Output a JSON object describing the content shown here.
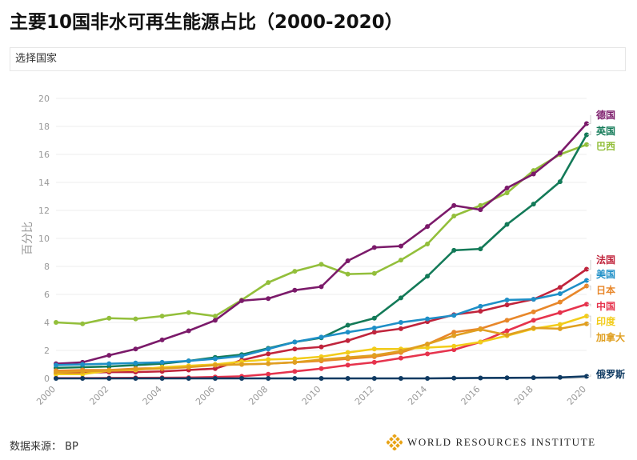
{
  "page": {
    "title": "主要10国非水可再生能源占比（2000-2020）",
    "country_selector": "选择国家",
    "source": "数据来源：  BP",
    "logo_text": "WORLD RESOURCES INSTITUTE"
  },
  "chart_data": {
    "type": "line",
    "title": "主要10国非水可再生能源占比（2000-2020）",
    "xlabel": "",
    "ylabel": "百分比",
    "ylim": [
      0,
      20
    ],
    "yticks": [
      0,
      2,
      4,
      6,
      8,
      10,
      12,
      14,
      16,
      18,
      20
    ],
    "xticks": [
      2000,
      2002,
      2004,
      2006,
      2008,
      2010,
      2012,
      2014,
      2016,
      2018,
      2020
    ],
    "x": [
      2000,
      2001,
      2002,
      2003,
      2004,
      2005,
      2006,
      2007,
      2008,
      2009,
      2010,
      2011,
      2012,
      2013,
      2014,
      2015,
      2016,
      2017,
      2018,
      2019,
      2020
    ],
    "grid": true,
    "legend": "right end labels",
    "series": [
      {
        "name": "巴西",
        "color": "#93bf3b",
        "values": [
          4.0,
          3.9,
          4.3,
          4.25,
          4.45,
          4.7,
          4.45,
          5.6,
          6.85,
          7.65,
          8.15,
          7.45,
          7.5,
          8.45,
          9.6,
          11.6,
          12.35,
          13.25,
          14.85,
          16.0,
          16.7
        ]
      },
      {
        "name": "德国",
        "color": "#7b1a6a",
        "values": [
          1.05,
          1.15,
          1.65,
          2.1,
          2.75,
          3.4,
          4.15,
          5.55,
          5.7,
          6.3,
          6.55,
          8.4,
          9.35,
          9.45,
          10.85,
          12.35,
          12.05,
          13.6,
          14.6,
          16.1,
          18.2
        ]
      },
      {
        "name": "英国",
        "color": "#137a58",
        "values": [
          0.75,
          0.8,
          0.85,
          0.95,
          1.05,
          1.25,
          1.5,
          1.7,
          2.15,
          2.6,
          2.9,
          3.8,
          4.3,
          5.75,
          7.3,
          9.15,
          9.25,
          11.0,
          12.45,
          14.05,
          17.4
        ]
      },
      {
        "name": "法国",
        "color": "#c0243c",
        "values": [
          0.35,
          0.4,
          0.45,
          0.45,
          0.5,
          0.6,
          0.7,
          1.3,
          1.75,
          2.1,
          2.25,
          2.7,
          3.3,
          3.55,
          4.05,
          4.55,
          4.8,
          5.25,
          5.65,
          6.5,
          7.8
        ]
      },
      {
        "name": "美国",
        "color": "#1e8fc7",
        "values": [
          0.95,
          1.0,
          1.05,
          1.1,
          1.15,
          1.25,
          1.4,
          1.6,
          2.1,
          2.6,
          2.95,
          3.3,
          3.6,
          4.0,
          4.25,
          4.5,
          5.15,
          5.6,
          5.65,
          6.05,
          7.0
        ]
      },
      {
        "name": "日本",
        "color": "#e8872a",
        "values": [
          0.55,
          0.6,
          0.6,
          0.7,
          0.75,
          0.85,
          0.95,
          1.0,
          1.05,
          1.15,
          1.25,
          1.4,
          1.55,
          1.85,
          2.45,
          3.3,
          3.55,
          4.15,
          4.75,
          5.45,
          6.6
        ]
      },
      {
        "name": "中国",
        "color": "#e6334d",
        "values": [
          0.02,
          0.02,
          0.03,
          0.04,
          0.05,
          0.06,
          0.1,
          0.15,
          0.3,
          0.5,
          0.7,
          0.95,
          1.15,
          1.45,
          1.75,
          2.05,
          2.6,
          3.4,
          4.15,
          4.7,
          5.3
        ]
      },
      {
        "name": "印度",
        "color": "#f2cc1a",
        "values": [
          0.3,
          0.3,
          0.55,
          0.6,
          0.8,
          0.9,
          1.0,
          1.2,
          1.35,
          1.4,
          1.55,
          1.85,
          2.1,
          2.1,
          2.2,
          2.3,
          2.6,
          3.05,
          3.55,
          3.85,
          4.45
        ]
      },
      {
        "name": "加拿大",
        "color": "#e09f20",
        "values": [
          0.45,
          0.5,
          0.55,
          0.65,
          0.7,
          0.8,
          0.95,
          1.0,
          1.05,
          1.15,
          1.35,
          1.5,
          1.65,
          1.95,
          2.45,
          3.05,
          3.5,
          3.1,
          3.6,
          3.55,
          3.9
        ]
      },
      {
        "name": "俄罗斯",
        "color": "#0f3a62",
        "values": [
          0.0,
          0.0,
          0.0,
          0.0,
          0.0,
          0.0,
          0.0,
          0.0,
          0.0,
          0.0,
          0.0,
          0.0,
          0.0,
          0.0,
          0.0,
          0.02,
          0.03,
          0.04,
          0.05,
          0.07,
          0.15
        ]
      }
    ],
    "end_labels": [
      {
        "name": "德国",
        "color": "#7b1a6a"
      },
      {
        "name": "英国",
        "color": "#137a58"
      },
      {
        "name": "巴西",
        "color": "#93bf3b"
      },
      {
        "name": "法国",
        "color": "#c0243c"
      },
      {
        "name": "美国",
        "color": "#1e8fc7"
      },
      {
        "name": "日本",
        "color": "#e8872a"
      },
      {
        "name": "中国",
        "color": "#e6334d"
      },
      {
        "name": "印度",
        "color": "#f2cc1a"
      },
      {
        "name": "加拿大",
        "color": "#e09f20"
      },
      {
        "name": "俄罗斯",
        "color": "#0f3a62"
      }
    ]
  }
}
